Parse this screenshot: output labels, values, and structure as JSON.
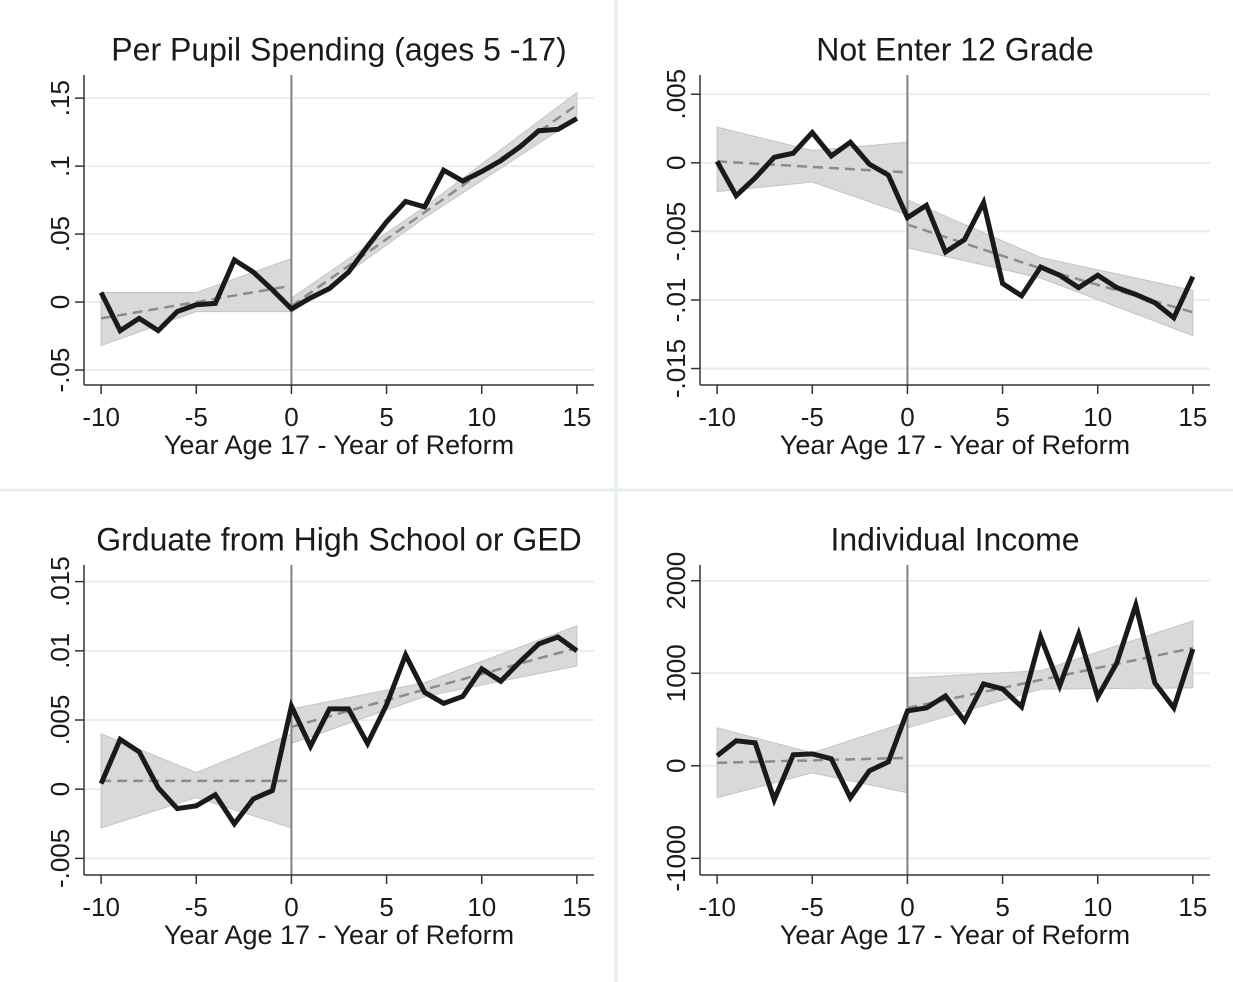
{
  "chart_data": [
    {
      "type": "line",
      "title": "Per Pupil Spending (ages 5 -17)",
      "xlabel": "Year Age 17 - Year of Reform",
      "x": [
        -10,
        -9,
        -8,
        -7,
        -6,
        -5,
        -4,
        -3,
        -2,
        -1,
        0,
        1,
        2,
        3,
        4,
        5,
        6,
        7,
        8,
        9,
        10,
        11,
        12,
        13,
        14,
        15
      ],
      "xlim": [
        -10.9,
        15.9
      ],
      "xticks": [
        -10,
        -5,
        0,
        5,
        10,
        15
      ],
      "ylim": [
        -0.061,
        0.167
      ],
      "yticks": [
        {
          "value": -0.05,
          "label": "-.05"
        },
        0,
        {
          "value": 0.05,
          "label": ".05"
        },
        {
          "value": 0.1,
          "label": ".1"
        },
        {
          "value": 0.15,
          "label": ".15"
        }
      ],
      "grid": true,
      "vline": 0,
      "series": [
        {
          "color": "#1a1a1a",
          "values": [
            0.007,
            -0.021,
            -0.012,
            -0.021,
            -0.007,
            -0.002,
            -0.001,
            0.031,
            0.022,
            0.009,
            -0.005,
            0.003,
            0.01,
            0.022,
            0.041,
            0.059,
            0.074,
            0.07,
            0.097,
            0.089,
            0.096,
            0.104,
            0.114,
            0.126,
            0.127,
            0.135
          ]
        }
      ],
      "fits": [
        {
          "x": [
            -10,
            -5,
            0
          ],
          "values": [
            -0.012,
            0.0,
            0.012
          ],
          "lower": [
            -0.032,
            -0.007,
            -0.007
          ],
          "upper": [
            0.007,
            0.007,
            0.032
          ]
        },
        {
          "x": [
            0,
            7,
            15
          ],
          "values": [
            -0.003,
            0.066,
            0.145
          ],
          "lower": [
            -0.008,
            0.062,
            0.135
          ],
          "upper": [
            0.003,
            0.07,
            0.154
          ]
        }
      ],
      "fit_color": "#8c8c8c",
      "band_color": "#d9d9d9"
    },
    {
      "type": "line",
      "title": "Not Enter 12 Grade",
      "xlabel": "Year Age 17 - Year of Reform",
      "x": [
        -10,
        -9,
        -8,
        -7,
        -6,
        -5,
        -4,
        -3,
        -2,
        -1,
        0,
        1,
        2,
        3,
        4,
        5,
        6,
        7,
        8,
        9,
        10,
        11,
        12,
        13,
        14,
        15
      ],
      "xlim": [
        -10.9,
        15.9
      ],
      "xticks": [
        -10,
        -5,
        0,
        5,
        10,
        15
      ],
      "ylim": [
        -0.0162,
        0.0064
      ],
      "yticks": [
        {
          "value": -0.015,
          "label": "-.015"
        },
        {
          "value": -0.01,
          "label": "-.01"
        },
        {
          "value": -0.005,
          "label": "-.005"
        },
        0,
        {
          "value": 0.005,
          "label": ".005"
        }
      ],
      "grid": true,
      "vline": 0,
      "series": [
        {
          "color": "#1a1a1a",
          "values": [
            0.0001,
            -0.0024,
            -0.0011,
            0.0004,
            0.0007,
            0.0022,
            0.0005,
            0.0015,
            -0.0001,
            -0.0009,
            -0.004,
            -0.0031,
            -0.0065,
            -0.0056,
            -0.0029,
            -0.0088,
            -0.0097,
            -0.0076,
            -0.0082,
            -0.0091,
            -0.0082,
            -0.0091,
            -0.0096,
            -0.0102,
            -0.0113,
            -0.0083
          ]
        }
      ],
      "fits": [
        {
          "x": [
            -10,
            -5,
            0
          ],
          "values": [
            0.0001,
            -0.0003,
            -0.0007
          ],
          "lower": [
            -0.0021,
            -0.0014,
            -0.0038
          ],
          "upper": [
            0.0026,
            0.0009,
            0.0015
          ]
        },
        {
          "x": [
            0,
            7,
            15
          ],
          "values": [
            -0.0045,
            -0.0077,
            -0.0109
          ],
          "lower": [
            -0.0062,
            -0.0084,
            -0.0126
          ],
          "upper": [
            -0.0027,
            -0.0069,
            -0.0093
          ]
        }
      ],
      "fit_color": "#8c8c8c",
      "band_color": "#d9d9d9"
    },
    {
      "type": "line",
      "title": "Grduate from High School or GED",
      "xlabel": "Year Age 17 - Year of Reform",
      "x": [
        -10,
        -9,
        -8,
        -7,
        -6,
        -5,
        -4,
        -3,
        -2,
        -1,
        0,
        1,
        2,
        3,
        4,
        5,
        6,
        7,
        8,
        9,
        10,
        11,
        12,
        13,
        14,
        15
      ],
      "xlim": [
        -10.9,
        15.9
      ],
      "xticks": [
        -10,
        -5,
        0,
        5,
        10,
        15
      ],
      "ylim": [
        -0.0062,
        0.0162
      ],
      "yticks": [
        {
          "value": -0.005,
          "label": "-.005"
        },
        0,
        {
          "value": 0.005,
          "label": ".005"
        },
        {
          "value": 0.01,
          "label": ".01"
        },
        {
          "value": 0.015,
          "label": ".015"
        }
      ],
      "grid": true,
      "vline": 0,
      "series": [
        {
          "color": "#1a1a1a",
          "values": [
            0.0004,
            0.0036,
            0.0027,
            0.0001,
            -0.0014,
            -0.0012,
            -0.0004,
            -0.0025,
            -0.0007,
            -0.0001,
            0.006,
            0.0031,
            0.0058,
            0.0058,
            0.0033,
            0.0061,
            0.0097,
            0.007,
            0.0062,
            0.0067,
            0.0087,
            0.0078,
            0.0092,
            0.0105,
            0.011,
            0.01
          ]
        }
      ],
      "fits": [
        {
          "x": [
            -10,
            -5,
            0
          ],
          "values": [
            0.0006,
            0.0006,
            0.0006
          ],
          "lower": [
            -0.0028,
            -0.0006,
            -0.0028
          ],
          "upper": [
            0.004,
            0.0012,
            0.004
          ]
        },
        {
          "x": [
            0,
            7,
            15
          ],
          "values": [
            0.0045,
            0.0072,
            0.0102
          ],
          "lower": [
            0.0033,
            0.0067,
            0.0089
          ],
          "upper": [
            0.0058,
            0.0077,
            0.0118
          ]
        }
      ],
      "fit_color": "#8c8c8c",
      "band_color": "#d9d9d9"
    },
    {
      "type": "line",
      "title": "Individual Income",
      "xlabel": "Year Age 17 - Year of Reform",
      "x": [
        -10,
        -9,
        -8,
        -7,
        -6,
        -5,
        -4,
        -3,
        -2,
        -1,
        0,
        1,
        2,
        3,
        4,
        5,
        6,
        7,
        8,
        9,
        10,
        11,
        12,
        13,
        14,
        15
      ],
      "xlim": [
        -10.9,
        15.9
      ],
      "xticks": [
        -10,
        -5,
        0,
        5,
        10,
        15
      ],
      "ylim": [
        -1180,
        2170
      ],
      "yticks": [
        -1000,
        0,
        1000,
        2000
      ],
      "grid": true,
      "vline": 0,
      "series": [
        {
          "color": "#1a1a1a",
          "values": [
            108,
            270,
            248,
            -367,
            119,
            129,
            76,
            -345,
            -54,
            43,
            593,
            626,
            755,
            486,
            885,
            831,
            637,
            1392,
            863,
            1424,
            745,
            1111,
            1737,
            896,
            626,
            1262
          ]
        }
      ],
      "fits": [
        {
          "x": [
            -10,
            -5,
            0
          ],
          "values": [
            32,
            59,
            86
          ],
          "lower": [
            -345,
            -76,
            -291
          ],
          "upper": [
            410,
            140,
            475
          ]
        },
        {
          "x": [
            0,
            7,
            15
          ],
          "values": [
            626,
            928,
            1273
          ],
          "lower": [
            410,
            828,
            842
          ],
          "upper": [
            950,
            1028,
            1565
          ]
        }
      ],
      "fit_color": "#8c8c8c",
      "band_color": "#d9d9d9"
    }
  ]
}
